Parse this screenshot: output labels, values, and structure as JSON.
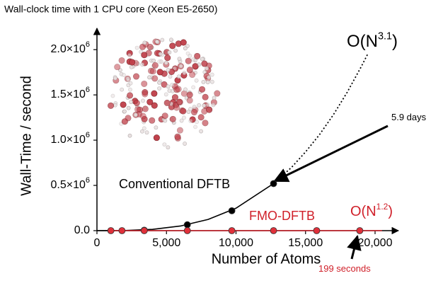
{
  "chart_data": {
    "type": "line",
    "title": "Wall-clock time with 1 CPU core (Xeon E5-2650)",
    "xlabel": "Number of Atoms",
    "ylabel": "Wall-Time / second",
    "xlim": [
      0,
      21500
    ],
    "ylim": [
      0,
      2200000
    ],
    "xticks": [
      0,
      {
        "value": 5000,
        "label": "5,000"
      },
      {
        "value": 10000,
        "label": "10,000"
      },
      {
        "value": 15000,
        "label": "15,000"
      },
      {
        "value": 20000,
        "label": "20,000"
      }
    ],
    "yticks": [
      {
        "value": 0,
        "label": "0.0"
      },
      {
        "value": 500000,
        "label": "0.5×10",
        "exp": "6"
      },
      {
        "value": 1000000,
        "label": "1.0×10",
        "exp": "6"
      },
      {
        "value": 1500000,
        "label": "1.5×10",
        "exp": "6"
      },
      {
        "value": 2000000,
        "label": "2.0×10",
        "exp": "6"
      }
    ],
    "series": [
      {
        "style": "solid",
        "color": "#000000",
        "x": [
          0,
          2000,
          4000,
          6000,
          8000,
          10000,
          12700
        ],
        "values": [
          0,
          1700,
          14000,
          51000,
          124000,
          248000,
          520000
        ]
      },
      {
        "style": "dotted",
        "color": "#000000",
        "x": [
          12700,
          14000,
          15000,
          16000,
          17000,
          18000,
          19000,
          19500
        ],
        "values": [
          520000,
          700000,
          870000,
          1060000,
          1280000,
          1530000,
          1810000,
          1960000
        ]
      },
      {
        "style": "solid",
        "color": "#d0202a",
        "x": [
          1000,
          20500
        ],
        "values": [
          0,
          0
        ]
      },
      {
        "style": "points",
        "color": "#000000",
        "x": [
          3400,
          6500,
          9700,
          12700
        ],
        "values": [
          5000,
          65000,
          220000,
          520000
        ]
      },
      {
        "style": "points",
        "color": "#e0303a",
        "x": [
          1000,
          1800,
          3400,
          6500,
          9700,
          12700,
          15800,
          18900
        ],
        "values": [
          0,
          0,
          0,
          0,
          0,
          0,
          0,
          0
        ]
      }
    ],
    "annotations": [
      {
        "text": "Conventional DFTB",
        "color": "#000000"
      },
      {
        "text": "FMO-DFTB",
        "color": "#d0202a"
      },
      {
        "text": "O(N",
        "sup": "3.1",
        "suffix": ")",
        "color": "#000000"
      },
      {
        "text": "O(N",
        "sup": "1.2",
        "suffix": ")",
        "color": "#d0202a"
      },
      {
        "text": "5.9 days",
        "color": "#000000"
      },
      {
        "text": "199 seconds",
        "color": "#d0202a"
      }
    ]
  }
}
